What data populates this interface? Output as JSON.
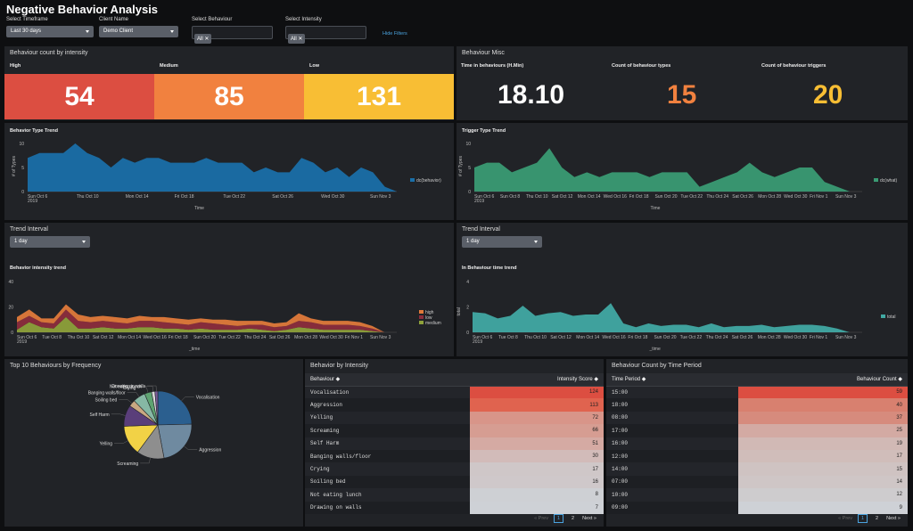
{
  "title": "Negative Behavior Analysis",
  "filters": {
    "timeframe": {
      "label": "Select Timeframe",
      "value": "Last 30 days"
    },
    "client": {
      "label": "Client Name",
      "value": "Demo Client"
    },
    "behaviour": {
      "label": "Select Behaviour",
      "chip": "All"
    },
    "intensity": {
      "label": "Select Intensity",
      "chip": "All"
    },
    "hide": "Hide Filters"
  },
  "count_panel": {
    "title": "Behaviour count by intensity",
    "labels": [
      "High",
      "Medium",
      "Low"
    ],
    "values": [
      "54",
      "85",
      "131"
    ],
    "colors": [
      "#dc4e41",
      "#f1813f",
      "#f8be34"
    ]
  },
  "misc_panel": {
    "title": "Behaviour Misc",
    "labels": [
      "Time in behaviours (H.Min)",
      "Count of behaviour types",
      "Count of behaviour triggers"
    ],
    "values": [
      "18.10",
      "15",
      "20"
    ],
    "colors": [
      "#ffffff",
      "#f1813f",
      "#f8be34"
    ]
  },
  "trend_interval": {
    "label": "Trend Interval",
    "value": "1 day"
  },
  "chart_data": [
    {
      "type": "area",
      "title": "Behavior Type Trend",
      "xlabel": "Time",
      "ylabel": "# of Types",
      "ylim": [
        0,
        10
      ],
      "yticks": [
        "10",
        "5",
        "0"
      ],
      "xticks": [
        "Sun Oct 6\n2019",
        "Thu Oct 10",
        "Mon Oct 14",
        "Fri Oct 18",
        "Tue Oct 22",
        "Sat Oct 26",
        "Wed Oct 30",
        "Sun Nov 3"
      ],
      "series": [
        {
          "name": "dc(behavior)",
          "color": "#1a6fa8",
          "values": [
            7,
            8,
            8,
            8,
            10,
            8,
            7,
            5,
            7,
            6,
            7,
            7,
            6,
            6,
            6,
            7,
            6,
            6,
            6,
            4,
            5,
            4,
            4,
            7,
            6,
            4,
            5,
            3,
            5,
            4,
            1,
            0
          ]
        }
      ],
      "legend": "right"
    },
    {
      "type": "area",
      "title": "Trigger Type Trend",
      "xlabel": "Time",
      "ylabel": "# of Types",
      "ylim": [
        0,
        10
      ],
      "yticks": [
        "10",
        "5",
        "0"
      ],
      "xticks": [
        "Sun Oct 6\n2019",
        "Sun Oct 8",
        "Thu Oct 10",
        "Sat Oct 12",
        "Mon Oct 14",
        "Wed Oct 16",
        "Fri Oct 18",
        "Sun Oct 20",
        "Tue Oct 22",
        "Thu Oct 24",
        "Sat Oct 26",
        "Mon Oct 28",
        "Wed Oct 30",
        "Fri Nov 1",
        "Sun Nov 3"
      ],
      "series": [
        {
          "name": "dc(what)",
          "color": "#3a9b73",
          "values": [
            5,
            6,
            6,
            4,
            5,
            6,
            9,
            5,
            3,
            4,
            3,
            4,
            4,
            4,
            3,
            4,
            4,
            4,
            1,
            2,
            3,
            4,
            6,
            4,
            3,
            4,
            5,
            5,
            2,
            1,
            0,
            0
          ]
        }
      ],
      "legend": "right"
    },
    {
      "type": "area",
      "title": "Behavior intensity trend",
      "xlabel": "_time",
      "ylim": [
        0,
        40
      ],
      "yticks": [
        "40",
        "20",
        "0"
      ],
      "xticks": [
        "Sun Oct 6\n2019",
        "Tue Oct 8",
        "Thu Oct 10",
        "Sat Oct 12",
        "Mon Oct 14",
        "Wed Oct 16",
        "Fri Oct 18",
        "Sun Oct 20",
        "Tue Oct 22",
        "Thu Oct 24",
        "Sat Oct 26",
        "Mon Oct 28",
        "Wed Oct 30",
        "Fri Nov 1",
        "Sun Nov 3"
      ],
      "series": [
        {
          "name": "medium",
          "color": "#8ea13a",
          "values": [
            2,
            8,
            4,
            3,
            12,
            3,
            3,
            4,
            3,
            3,
            4,
            4,
            3,
            3,
            2,
            3,
            2,
            2,
            2,
            3,
            2,
            1,
            2,
            4,
            3,
            2,
            2,
            2,
            2,
            1,
            0,
            0
          ]
        },
        {
          "name": "low",
          "color": "#8c2d3c",
          "values": [
            6,
            5,
            4,
            4,
            6,
            6,
            5,
            5,
            5,
            4,
            5,
            5,
            5,
            4,
            4,
            5,
            5,
            4,
            3,
            3,
            4,
            3,
            3,
            5,
            5,
            4,
            4,
            4,
            3,
            2,
            0,
            0
          ]
        },
        {
          "name": "high",
          "color": "#e07a3a",
          "values": [
            4,
            5,
            3,
            4,
            4,
            5,
            4,
            4,
            4,
            4,
            4,
            3,
            4,
            4,
            4,
            3,
            3,
            4,
            4,
            3,
            3,
            3,
            3,
            6,
            3,
            3,
            3,
            3,
            3,
            2,
            0,
            0
          ]
        }
      ],
      "legend": "right"
    },
    {
      "type": "area",
      "title": "In Behaviour time trend",
      "xlabel": "_time",
      "ylabel": "total",
      "ylim": [
        0,
        4
      ],
      "yticks": [
        "4",
        "2",
        "0"
      ],
      "xticks": [
        "Sun Oct 6\n2019",
        "Tue Oct 8",
        "Thu Oct 10",
        "Sat Oct 12",
        "Mon Oct 14",
        "Wed Oct 16",
        "Fri Oct 18",
        "Sun Oct 20",
        "Tue Oct 22",
        "Thu Oct 24",
        "Sat Oct 26",
        "Mon Oct 28",
        "Wed Oct 30",
        "Fri Nov 1",
        "Sun Nov 3"
      ],
      "series": [
        {
          "name": "total",
          "color": "#41a9a3",
          "values": [
            1.6,
            1.5,
            1.1,
            1.3,
            2.1,
            1.3,
            1.5,
            1.6,
            1.3,
            1.4,
            1.4,
            2.3,
            0.7,
            0.4,
            0.7,
            0.5,
            0.6,
            0.6,
            0.4,
            0.7,
            0.4,
            0.5,
            0.5,
            0.6,
            0.4,
            0.5,
            0.6,
            0.6,
            0.5,
            0.3,
            0,
            0
          ]
        }
      ],
      "legend": "right"
    },
    {
      "type": "pie",
      "title": "Top 10 Behaviours by Frequency",
      "categories": [
        "Vocalisation",
        "Aggression",
        "Screaming",
        "Yelling",
        "Self Harm",
        "Soiling bed",
        "Banging walls/floor",
        "Crying",
        "Not eating lunch",
        "Drawing on walls"
      ],
      "values": [
        124,
        113,
        66,
        72,
        51,
        16,
        30,
        17,
        8,
        7
      ],
      "colors": [
        "#2b5f8f",
        "#6f8aa0",
        "#8e8e8e",
        "#f2d246",
        "#5a3e7a",
        "#c9a882",
        "#86b8a4",
        "#5ea371",
        "#d9d9d9",
        "#7a5c99"
      ]
    }
  ],
  "intensity_table": {
    "title": "Behavior by Intensity",
    "col1": "Behaviour ◆",
    "col2": "Intensity Score ◆",
    "rows": [
      {
        "k": "Vocalisation",
        "v": "124",
        "c": "#dc4e41"
      },
      {
        "k": "Aggression",
        "v": "113",
        "c": "#e0634f"
      },
      {
        "k": "Yelling",
        "v": "72",
        "c": "#d89589"
      },
      {
        "k": "Screaming",
        "v": "66",
        "c": "#d69d92"
      },
      {
        "k": "Self Harm",
        "v": "51",
        "c": "#d5aaa3"
      },
      {
        "k": "Banging walls/floor",
        "v": "30",
        "c": "#d2bbb9"
      },
      {
        "k": "Crying",
        "v": "17",
        "c": "#cfc7c8"
      },
      {
        "k": "Soiling bed",
        "v": "16",
        "c": "#cfc8ca"
      },
      {
        "k": "Not eating lunch",
        "v": "8",
        "c": "#ced0d4"
      },
      {
        "k": "Drawing on walls",
        "v": "7",
        "c": "#ced1d6"
      }
    ],
    "pager": {
      "prev": "« Prev",
      "p1": "1",
      "p2": "2",
      "next": "Next »"
    }
  },
  "period_table": {
    "title": "Behaviour Count by Time Period",
    "col1": "Time Period ◆",
    "col2": "Behaviour Count ◆",
    "rows": [
      {
        "k": "15:00",
        "v": "59",
        "c": "#dc4e41"
      },
      {
        "k": "18:00",
        "v": "40",
        "c": "#d8806f"
      },
      {
        "k": "08:00",
        "v": "37",
        "c": "#d68b7d"
      },
      {
        "k": "17:00",
        "v": "25",
        "c": "#d3aaa3"
      },
      {
        "k": "16:00",
        "v": "19",
        "c": "#d1b9b5"
      },
      {
        "k": "12:00",
        "v": "17",
        "c": "#d0bdba"
      },
      {
        "k": "14:00",
        "v": "15",
        "c": "#cfc3c2"
      },
      {
        "k": "07:00",
        "v": "14",
        "c": "#cfc6c6"
      },
      {
        "k": "10:00",
        "v": "12",
        "c": "#ceccce"
      },
      {
        "k": "09:00",
        "v": "9",
        "c": "#ced1d6"
      }
    ],
    "pager": {
      "prev": "« Prev",
      "p1": "1",
      "p2": "2",
      "next": "Next »"
    }
  }
}
